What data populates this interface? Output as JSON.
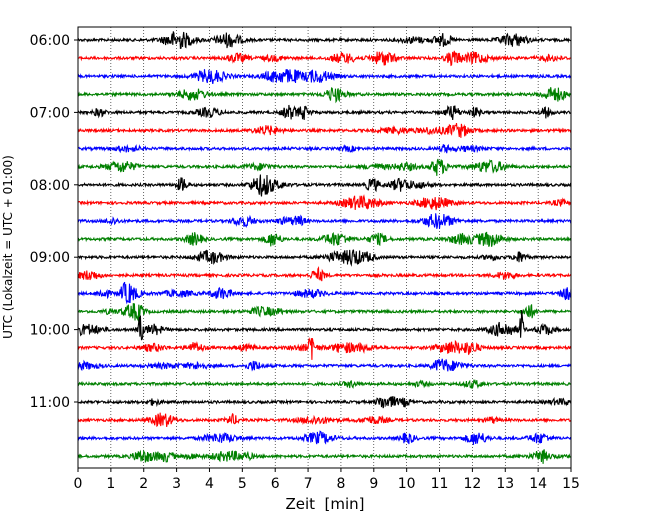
{
  "chart_data": {
    "type": "line",
    "chart_kind": "helicorder (seismogram drum plot)",
    "xlabel": "Zeit  [min]",
    "ylabel": "UTC (Lokalzeit = UTC + 01:00)",
    "xlim": [
      0,
      15
    ],
    "x_ticks": [
      "0",
      "1",
      "2",
      "3",
      "4",
      "5",
      "6",
      "7",
      "8",
      "9",
      "10",
      "11",
      "12",
      "13",
      "14",
      "15"
    ],
    "y_ticks": [
      "06:00",
      "07:00",
      "08:00",
      "09:00",
      "10:00",
      "11:00"
    ],
    "traces_per_hour": 4,
    "trace_count": 24,
    "first_trace_start": "06:00",
    "last_trace_start": "11:45",
    "trace_colors_cycle": [
      "#000000",
      "#ff0000",
      "#0000ff",
      "#008000"
    ],
    "vertical_grid": "dotted, every 1 min",
    "notable_events": [
      {
        "trace_start": "10:00",
        "minute": 13.5,
        "description": "large burst"
      },
      {
        "trace_start": "10:15",
        "minute": 7.1,
        "description": "large spike"
      },
      {
        "trace_start": "10:00",
        "minute": 1.9,
        "description": "large spike"
      }
    ]
  }
}
